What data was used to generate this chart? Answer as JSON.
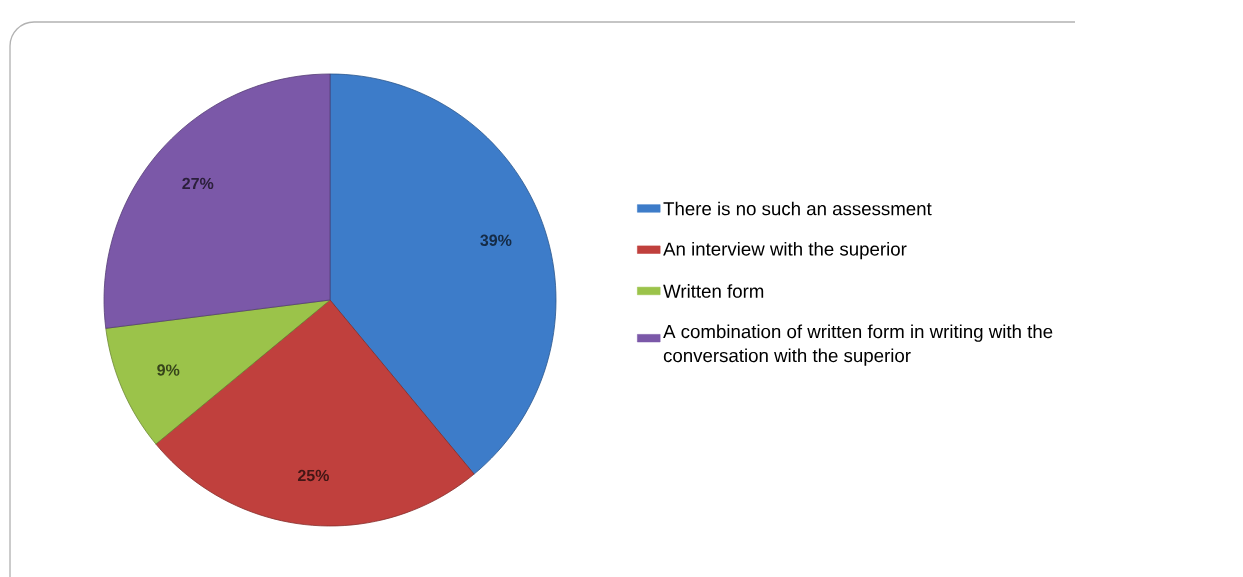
{
  "chart_data": {
    "type": "pie",
    "categories": [
      "There is no such an assessment",
      "An interview with the superior",
      "Written form",
      "A combination of written form in writing with the conversation with the superior"
    ],
    "values": [
      39,
      25,
      9,
      27
    ],
    "value_labels": [
      "39%",
      "25%",
      "9%",
      "27%"
    ],
    "colors": [
      "#3d7cc9",
      "#c0403d",
      "#9bc34a",
      "#7b58a8"
    ],
    "legend": "right"
  }
}
